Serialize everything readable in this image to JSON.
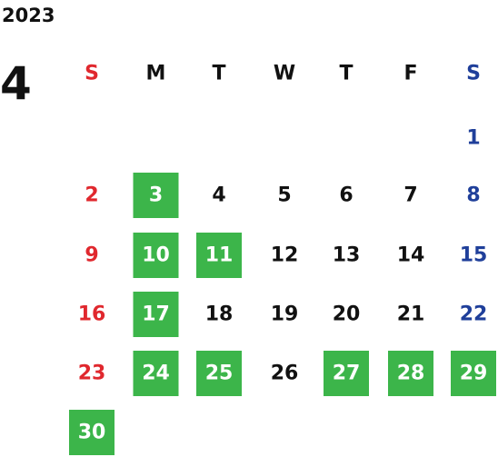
{
  "year": "2023",
  "month": "4",
  "highlight_color": "#3cb54a",
  "weekdays": [
    {
      "label": "S",
      "color": "#e0282e"
    },
    {
      "label": "M",
      "color": "#111111"
    },
    {
      "label": "T",
      "color": "#111111"
    },
    {
      "label": "W",
      "color": "#111111"
    },
    {
      "label": "T",
      "color": "#111111"
    },
    {
      "label": "F",
      "color": "#111111"
    },
    {
      "label": "S",
      "color": "#1f3f9a"
    }
  ],
  "weeks": [
    [
      null,
      null,
      null,
      null,
      null,
      null,
      {
        "day": 1,
        "highlight": false
      }
    ],
    [
      {
        "day": 2,
        "highlight": false
      },
      {
        "day": 3,
        "highlight": true
      },
      {
        "day": 4,
        "highlight": false
      },
      {
        "day": 5,
        "highlight": false
      },
      {
        "day": 6,
        "highlight": false
      },
      {
        "day": 7,
        "highlight": false
      },
      {
        "day": 8,
        "highlight": false
      }
    ],
    [
      {
        "day": 9,
        "highlight": false
      },
      {
        "day": 10,
        "highlight": true
      },
      {
        "day": 11,
        "highlight": true
      },
      {
        "day": 12,
        "highlight": false
      },
      {
        "day": 13,
        "highlight": false
      },
      {
        "day": 14,
        "highlight": false
      },
      {
        "day": 15,
        "highlight": false
      }
    ],
    [
      {
        "day": 16,
        "highlight": false
      },
      {
        "day": 17,
        "highlight": true
      },
      {
        "day": 18,
        "highlight": false
      },
      {
        "day": 19,
        "highlight": false
      },
      {
        "day": 20,
        "highlight": false
      },
      {
        "day": 21,
        "highlight": false
      },
      {
        "day": 22,
        "highlight": false
      }
    ],
    [
      {
        "day": 23,
        "highlight": false
      },
      {
        "day": 24,
        "highlight": true
      },
      {
        "day": 25,
        "highlight": true
      },
      {
        "day": 26,
        "highlight": false
      },
      {
        "day": 27,
        "highlight": true
      },
      {
        "day": 28,
        "highlight": true
      },
      {
        "day": 29,
        "highlight": true
      }
    ],
    [
      {
        "day": 30,
        "highlight": true
      },
      null,
      null,
      null,
      null,
      null,
      null
    ]
  ]
}
